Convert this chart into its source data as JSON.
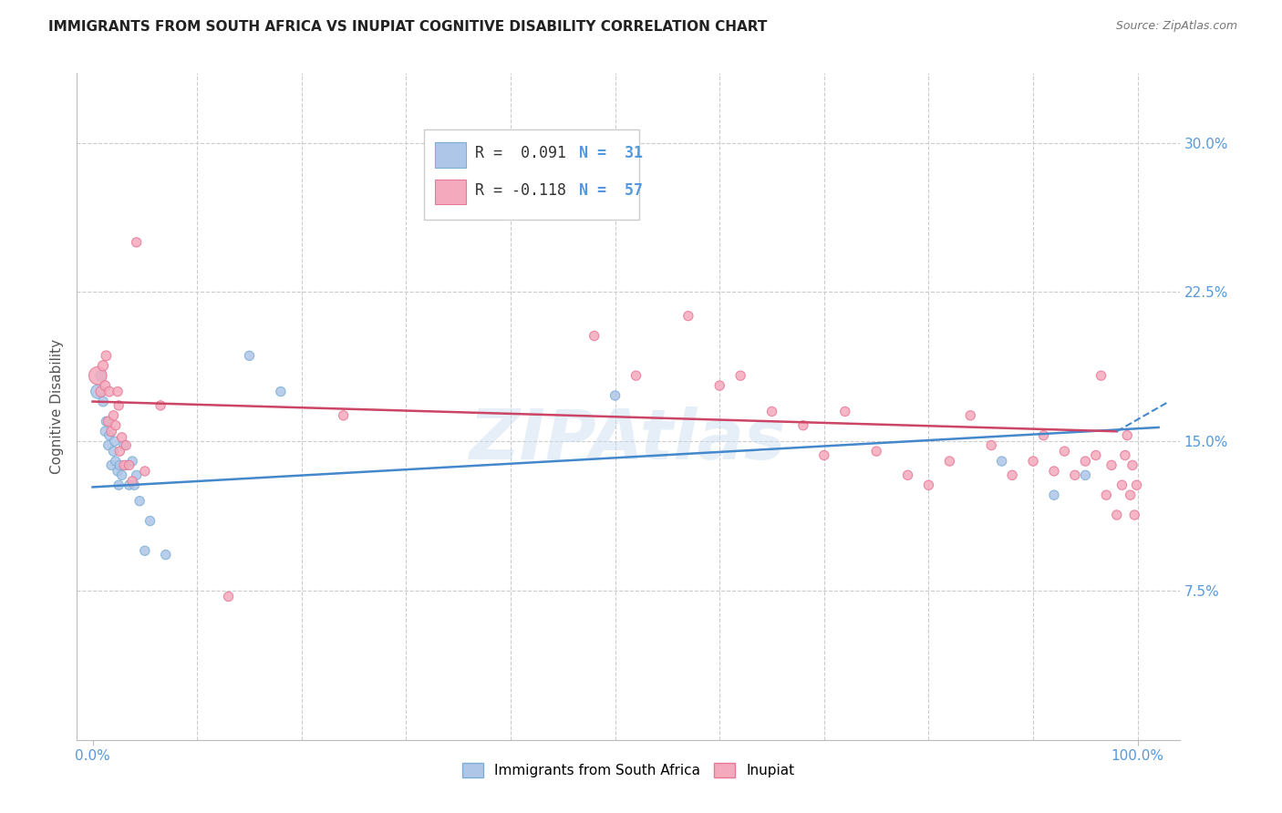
{
  "title": "IMMIGRANTS FROM SOUTH AFRICA VS INUPIAT COGNITIVE DISABILITY CORRELATION CHART",
  "source": "Source: ZipAtlas.com",
  "ylabel": "Cognitive Disability",
  "y_ticks": [
    0.075,
    0.15,
    0.225,
    0.3
  ],
  "blue_color_fill": "#aec6e8",
  "blue_color_edge": "#7bafd4",
  "pink_color_fill": "#f4aabc",
  "pink_color_edge": "#e87898",
  "blue_line_color": "#4488cc",
  "pink_line_color": "#cc4466",
  "tick_color": "#5599dd",
  "watermark": "ZIPAtlas",
  "legend_R_blue": "R =  0.091",
  "legend_N_blue": "N =  31",
  "legend_R_pink": "R = -0.118",
  "legend_N_pink": "N =  57",
  "blue_x": [
    0.005,
    0.008,
    0.01,
    0.012,
    0.013,
    0.015,
    0.016,
    0.018,
    0.02,
    0.021,
    0.022,
    0.024,
    0.025,
    0.026,
    0.028,
    0.03,
    0.032,
    0.035,
    0.038,
    0.04,
    0.042,
    0.045,
    0.05,
    0.055,
    0.07,
    0.15,
    0.18,
    0.5,
    0.87,
    0.92,
    0.95
  ],
  "blue_y": [
    0.175,
    0.183,
    0.17,
    0.155,
    0.16,
    0.148,
    0.153,
    0.138,
    0.145,
    0.15,
    0.14,
    0.135,
    0.128,
    0.138,
    0.133,
    0.148,
    0.138,
    0.128,
    0.14,
    0.128,
    0.133,
    0.12,
    0.095,
    0.11,
    0.093,
    0.193,
    0.175,
    0.173,
    0.14,
    0.123,
    0.133
  ],
  "blue_sizes": [
    120,
    70,
    60,
    55,
    55,
    55,
    55,
    55,
    55,
    55,
    55,
    55,
    55,
    55,
    55,
    55,
    55,
    55,
    55,
    55,
    55,
    55,
    55,
    55,
    55,
    55,
    55,
    55,
    55,
    55,
    55
  ],
  "pink_x": [
    0.005,
    0.008,
    0.01,
    0.012,
    0.013,
    0.015,
    0.016,
    0.018,
    0.02,
    0.022,
    0.024,
    0.025,
    0.026,
    0.028,
    0.03,
    0.032,
    0.035,
    0.038,
    0.042,
    0.05,
    0.065,
    0.13,
    0.24,
    0.48,
    0.52,
    0.57,
    0.6,
    0.62,
    0.65,
    0.68,
    0.7,
    0.72,
    0.75,
    0.78,
    0.8,
    0.82,
    0.84,
    0.86,
    0.88,
    0.9,
    0.91,
    0.92,
    0.93,
    0.94,
    0.95,
    0.96,
    0.965,
    0.97,
    0.975,
    0.98,
    0.985,
    0.988,
    0.99,
    0.993,
    0.995,
    0.997,
    0.999
  ],
  "pink_y": [
    0.183,
    0.175,
    0.188,
    0.178,
    0.193,
    0.16,
    0.175,
    0.155,
    0.163,
    0.158,
    0.175,
    0.168,
    0.145,
    0.152,
    0.138,
    0.148,
    0.138,
    0.13,
    0.25,
    0.135,
    0.168,
    0.072,
    0.163,
    0.203,
    0.183,
    0.213,
    0.178,
    0.183,
    0.165,
    0.158,
    0.143,
    0.165,
    0.145,
    0.133,
    0.128,
    0.14,
    0.163,
    0.148,
    0.133,
    0.14,
    0.153,
    0.135,
    0.145,
    0.133,
    0.14,
    0.143,
    0.183,
    0.123,
    0.138,
    0.113,
    0.128,
    0.143,
    0.153,
    0.123,
    0.138,
    0.113,
    0.128
  ],
  "pink_sizes": [
    200,
    70,
    65,
    60,
    60,
    60,
    60,
    60,
    55,
    55,
    55,
    55,
    55,
    55,
    55,
    55,
    55,
    55,
    55,
    55,
    55,
    55,
    55,
    55,
    55,
    55,
    55,
    55,
    55,
    55,
    55,
    55,
    55,
    55,
    55,
    55,
    55,
    55,
    55,
    55,
    55,
    55,
    55,
    55,
    55,
    55,
    55,
    55,
    55,
    55,
    55,
    55,
    55,
    55,
    55,
    55,
    55
  ]
}
